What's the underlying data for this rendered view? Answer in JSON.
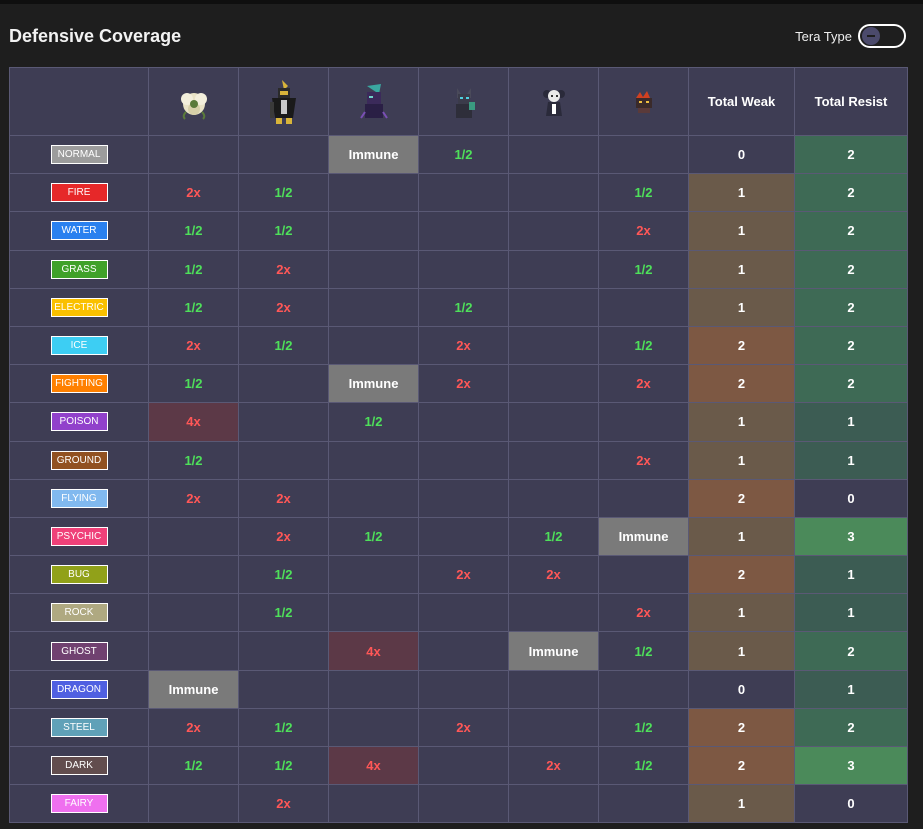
{
  "header": {
    "title": "Defensive Coverage",
    "tera_label": "Tera Type"
  },
  "table": {
    "total_weak_label": "Total Weak",
    "total_resist_label": "Total Resist",
    "pokemon": [
      {
        "icon": "whimsicott-sprite"
      },
      {
        "icon": "kingambit-sprite"
      },
      {
        "icon": "ghost-dark-mon-sprite"
      },
      {
        "icon": "zoroark-sprite"
      },
      {
        "icon": "gothitelle-sprite"
      },
      {
        "icon": "fire-mon-sprite"
      }
    ],
    "rows": [
      {
        "type": "NORMAL",
        "color": "#9c9c9c",
        "cells": [
          "",
          "",
          "Immune",
          "1/2",
          "",
          ""
        ],
        "weak": "0",
        "resist": "2"
      },
      {
        "type": "FIRE",
        "color": "#e62829",
        "cells": [
          "2x",
          "1/2",
          "",
          "",
          "",
          "1/2"
        ],
        "weak": "1",
        "resist": "2"
      },
      {
        "type": "WATER",
        "color": "#2980ef",
        "cells": [
          "1/2",
          "1/2",
          "",
          "",
          "",
          "2x"
        ],
        "weak": "1",
        "resist": "2"
      },
      {
        "type": "GRASS",
        "color": "#3fa129",
        "cells": [
          "1/2",
          "2x",
          "",
          "",
          "",
          "1/2"
        ],
        "weak": "1",
        "resist": "2"
      },
      {
        "type": "ELECTRIC",
        "color": "#fac000",
        "cells": [
          "1/2",
          "2x",
          "",
          "1/2",
          "",
          ""
        ],
        "weak": "1",
        "resist": "2"
      },
      {
        "type": "ICE",
        "color": "#3dcef3",
        "cells": [
          "2x",
          "1/2",
          "",
          "2x",
          "",
          "1/2"
        ],
        "weak": "2",
        "resist": "2"
      },
      {
        "type": "FIGHTING",
        "color": "#ff8000",
        "cells": [
          "1/2",
          "",
          "Immune",
          "2x",
          "",
          "2x"
        ],
        "weak": "2",
        "resist": "2"
      },
      {
        "type": "POISON",
        "color": "#9141cb",
        "cells": [
          "4x",
          "",
          "1/2",
          "",
          "",
          ""
        ],
        "weak": "1",
        "resist": "1"
      },
      {
        "type": "GROUND",
        "color": "#915121",
        "cells": [
          "1/2",
          "",
          "",
          "",
          "",
          "2x"
        ],
        "weak": "1",
        "resist": "1"
      },
      {
        "type": "FLYING",
        "color": "#81b9ef",
        "cells": [
          "2x",
          "2x",
          "",
          "",
          "",
          ""
        ],
        "weak": "2",
        "resist": "0"
      },
      {
        "type": "PSYCHIC",
        "color": "#ef4179",
        "cells": [
          "",
          "2x",
          "1/2",
          "",
          "1/2",
          "Immune"
        ],
        "weak": "1",
        "resist": "3"
      },
      {
        "type": "BUG",
        "color": "#91a119",
        "cells": [
          "",
          "1/2",
          "",
          "2x",
          "2x",
          ""
        ],
        "weak": "2",
        "resist": "1"
      },
      {
        "type": "ROCK",
        "color": "#afa981",
        "cells": [
          "",
          "1/2",
          "",
          "",
          "",
          "2x"
        ],
        "weak": "1",
        "resist": "1"
      },
      {
        "type": "GHOST",
        "color": "#704170",
        "cells": [
          "",
          "",
          "4x",
          "",
          "Immune",
          "1/2"
        ],
        "weak": "1",
        "resist": "2"
      },
      {
        "type": "DRAGON",
        "color": "#5060e1",
        "cells": [
          "Immune",
          "",
          "",
          "",
          "",
          ""
        ],
        "weak": "0",
        "resist": "1"
      },
      {
        "type": "STEEL",
        "color": "#60a1b8",
        "cells": [
          "2x",
          "1/2",
          "",
          "2x",
          "",
          "1/2"
        ],
        "weak": "2",
        "resist": "2"
      },
      {
        "type": "DARK",
        "color": "#624d4e",
        "cells": [
          "1/2",
          "1/2",
          "4x",
          "",
          "2x",
          "1/2"
        ],
        "weak": "2",
        "resist": "3"
      },
      {
        "type": "FAIRY",
        "color": "#ef70ef",
        "cells": [
          "",
          "2x",
          "",
          "",
          "",
          ""
        ],
        "weak": "1",
        "resist": "0"
      }
    ]
  }
}
